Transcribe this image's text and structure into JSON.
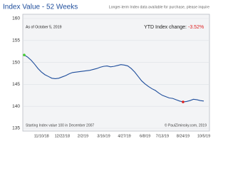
{
  "chart_data": {
    "type": "line",
    "title": "Index Value - 52 Weeks",
    "subtitle": "Longer-term Index data available for purchase, please inquire",
    "as_of": "As of October 5, 2019",
    "ytd_label": "YTD Index change:",
    "ytd_value": "-3.52%",
    "note_left": "Starting Index value 100 in December 2007",
    "note_right": "© PaulZiminsky.com, 2019",
    "categories": [
      null,
      null,
      null,
      null,
      null,
      "11/10/18",
      null,
      null,
      null,
      null,
      null,
      "12/22/18",
      null,
      null,
      null,
      null,
      null,
      "2/2/19",
      null,
      null,
      null,
      null,
      null,
      "3/16/19",
      null,
      null,
      null,
      null,
      null,
      "4/27/19",
      null,
      null,
      null,
      null,
      null,
      "6/8/19",
      null,
      null,
      null,
      null,
      "7/13/19",
      null,
      null,
      null,
      null,
      null,
      "8/24/19",
      null,
      null,
      null,
      null,
      null,
      "10/5/19"
    ],
    "series": [
      {
        "name": "Index Value",
        "color": "#1f4e9c",
        "values": [
          151.7,
          151.2,
          150.5,
          149.6,
          148.6,
          147.8,
          147.2,
          146.8,
          146.4,
          146.3,
          146.4,
          146.7,
          147.0,
          147.4,
          147.7,
          147.8,
          147.9,
          148.0,
          148.1,
          148.2,
          148.4,
          148.6,
          148.9,
          149.1,
          149.2,
          149.0,
          149.1,
          149.3,
          149.5,
          149.4,
          149.2,
          148.6,
          147.8,
          146.8,
          145.8,
          145.1,
          144.5,
          144.0,
          143.6,
          143.0,
          142.5,
          142.2,
          141.9,
          141.8,
          141.5,
          141.2,
          141.0,
          141.1,
          141.3,
          141.6,
          141.5,
          141.3,
          141.2
        ]
      }
    ],
    "markers": [
      {
        "index": 0,
        "color": "#44cc33"
      },
      {
        "index": 46,
        "color": "#dd2222"
      }
    ],
    "ylim": [
      135,
      160
    ],
    "yticks": [
      135,
      140,
      145,
      150,
      155,
      160
    ],
    "grid": true
  }
}
